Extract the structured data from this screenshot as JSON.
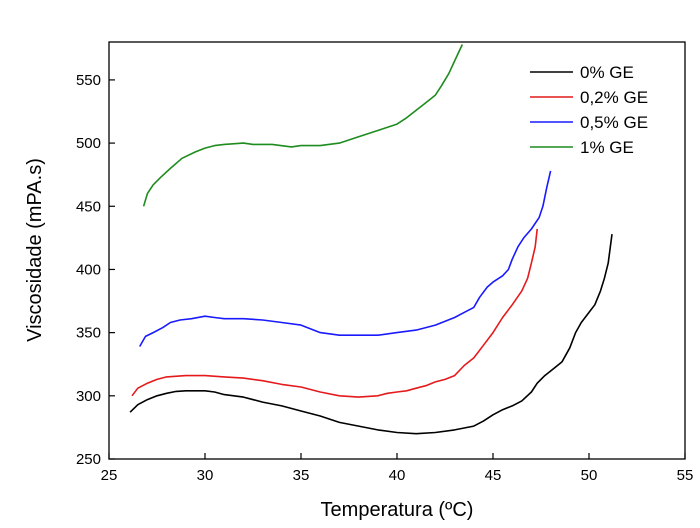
{
  "chart_data": {
    "type": "line",
    "title": "",
    "xlabel": "Temperatura (ºC)",
    "ylabel": "Viscosidade (mPA.s)",
    "xlim": [
      25,
      55
    ],
    "ylim": [
      250,
      580
    ],
    "xticks": [
      25,
      30,
      35,
      40,
      45,
      50,
      55
    ],
    "yticks": [
      250,
      300,
      350,
      400,
      450,
      500,
      550
    ],
    "grid": false,
    "legend_position": "top-right",
    "series": [
      {
        "name": "0% GE",
        "color": "#000000",
        "points": [
          [
            26.1,
            287
          ],
          [
            26.5,
            293
          ],
          [
            27,
            297
          ],
          [
            27.5,
            300
          ],
          [
            28,
            302
          ],
          [
            28.5,
            303.5
          ],
          [
            29,
            304
          ],
          [
            29.5,
            304
          ],
          [
            30,
            304
          ],
          [
            30.5,
            303
          ],
          [
            31,
            301
          ],
          [
            31.5,
            300
          ],
          [
            32,
            299
          ],
          [
            33,
            295
          ],
          [
            34,
            292
          ],
          [
            35,
            288
          ],
          [
            36,
            284
          ],
          [
            37,
            279
          ],
          [
            38,
            276
          ],
          [
            39,
            273
          ],
          [
            40,
            271
          ],
          [
            41,
            270
          ],
          [
            42,
            271
          ],
          [
            43,
            273
          ],
          [
            44,
            276
          ],
          [
            44.5,
            280
          ],
          [
            45,
            285
          ],
          [
            45.5,
            289
          ],
          [
            46,
            292
          ],
          [
            46.5,
            296
          ],
          [
            47,
            303
          ],
          [
            47.3,
            310
          ],
          [
            47.7,
            316
          ],
          [
            48.2,
            322
          ],
          [
            48.6,
            327
          ],
          [
            49,
            338
          ],
          [
            49.3,
            350
          ],
          [
            49.6,
            358
          ],
          [
            50,
            366
          ],
          [
            50.3,
            372
          ],
          [
            50.6,
            383
          ],
          [
            50.8,
            393
          ],
          [
            51,
            405
          ],
          [
            51.2,
            428
          ]
        ]
      },
      {
        "name": "0,2% GE",
        "color": "#e41a1c",
        "points": [
          [
            26.2,
            300
          ],
          [
            26.5,
            306
          ],
          [
            27,
            310
          ],
          [
            27.5,
            313
          ],
          [
            28,
            315
          ],
          [
            29,
            316
          ],
          [
            30,
            316
          ],
          [
            31,
            315
          ],
          [
            32,
            314
          ],
          [
            33,
            312
          ],
          [
            34,
            309
          ],
          [
            35,
            307
          ],
          [
            36,
            303
          ],
          [
            37,
            300
          ],
          [
            38,
            299
          ],
          [
            39,
            300
          ],
          [
            39.5,
            302
          ],
          [
            40,
            303
          ],
          [
            40.5,
            304
          ],
          [
            41,
            306
          ],
          [
            41.5,
            308
          ],
          [
            42,
            311
          ],
          [
            42.5,
            313
          ],
          [
            43,
            316
          ],
          [
            43.5,
            324
          ],
          [
            44,
            330
          ],
          [
            44.5,
            340
          ],
          [
            45,
            350
          ],
          [
            45.5,
            362
          ],
          [
            46,
            372
          ],
          [
            46.5,
            383
          ],
          [
            46.8,
            393
          ],
          [
            47,
            405
          ],
          [
            47.2,
            418
          ],
          [
            47.3,
            432
          ]
        ]
      },
      {
        "name": "0,5% GE",
        "color": "#1a1aff",
        "points": [
          [
            26.6,
            339
          ],
          [
            26.9,
            347
          ],
          [
            27.3,
            350
          ],
          [
            27.8,
            354
          ],
          [
            28.2,
            358
          ],
          [
            28.7,
            360
          ],
          [
            29.3,
            361
          ],
          [
            30,
            363
          ],
          [
            30.5,
            362
          ],
          [
            31,
            361
          ],
          [
            32,
            361
          ],
          [
            33,
            360
          ],
          [
            34,
            358
          ],
          [
            35,
            356
          ],
          [
            36,
            350
          ],
          [
            37,
            348
          ],
          [
            38,
            348
          ],
          [
            39,
            348
          ],
          [
            40,
            350
          ],
          [
            41,
            352
          ],
          [
            42,
            356
          ],
          [
            43,
            362
          ],
          [
            43.5,
            366
          ],
          [
            44,
            370
          ],
          [
            44.3,
            378
          ],
          [
            44.7,
            386
          ],
          [
            45,
            390
          ],
          [
            45.5,
            395
          ],
          [
            45.8,
            400
          ],
          [
            46,
            408
          ],
          [
            46.3,
            418
          ],
          [
            46.6,
            425
          ],
          [
            47,
            432
          ],
          [
            47.4,
            441
          ],
          [
            47.6,
            450
          ],
          [
            47.8,
            465
          ],
          [
            48,
            478
          ]
        ]
      },
      {
        "name": "1% GE",
        "color": "#1e8c1e",
        "points": [
          [
            26.8,
            450
          ],
          [
            27,
            460
          ],
          [
            27.3,
            467
          ],
          [
            27.7,
            473
          ],
          [
            28.2,
            480
          ],
          [
            28.8,
            488
          ],
          [
            29.5,
            493
          ],
          [
            30,
            496
          ],
          [
            30.5,
            498
          ],
          [
            31,
            499
          ],
          [
            32,
            500
          ],
          [
            32.5,
            499
          ],
          [
            33.5,
            499
          ],
          [
            34.5,
            497
          ],
          [
            35,
            498
          ],
          [
            36,
            498
          ],
          [
            37,
            500
          ],
          [
            38,
            505
          ],
          [
            39,
            510
          ],
          [
            40,
            515
          ],
          [
            40.5,
            520
          ],
          [
            41,
            526
          ],
          [
            41.5,
            532
          ],
          [
            42,
            538
          ],
          [
            42.3,
            545
          ],
          [
            42.7,
            555
          ],
          [
            43,
            565
          ],
          [
            43.4,
            578
          ]
        ]
      }
    ]
  }
}
